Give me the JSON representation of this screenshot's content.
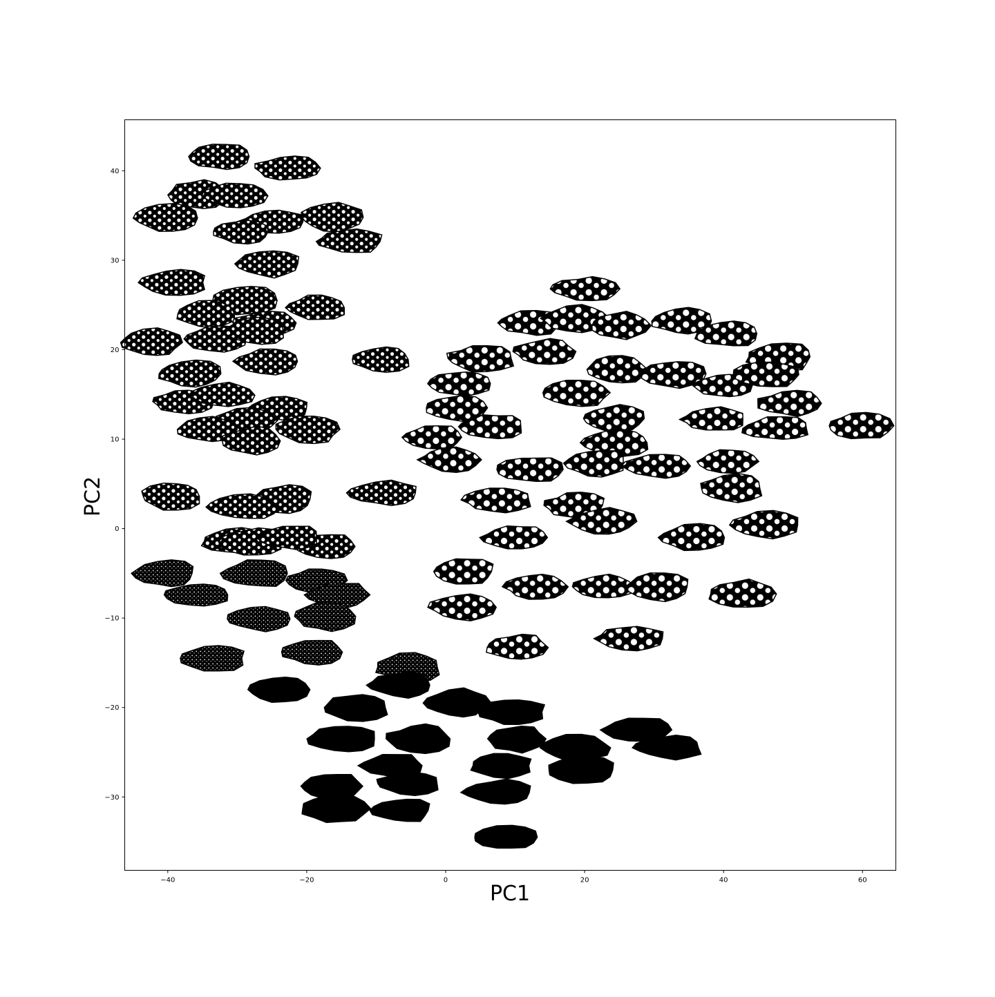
{
  "chart_data": {
    "type": "scatter",
    "title": "",
    "xlabel": "PC1",
    "ylabel": "PC2",
    "xlim": [
      -46.2,
      64.8
    ],
    "ylim": [
      -38.2,
      45.7
    ],
    "xticks": [
      -40,
      -20,
      0,
      20,
      40,
      60
    ],
    "yticks": [
      -30,
      -20,
      -10,
      0,
      10,
      20,
      30,
      40
    ],
    "xtick_labels": [
      "−40",
      "−20",
      "0",
      "20",
      "40",
      "60"
    ],
    "ytick_labels": [
      "−30",
      "−20",
      "−10",
      "0",
      "10",
      "20",
      "30",
      "40"
    ],
    "grid": false,
    "legend": "none",
    "marker": "image thumbnail of spotted specimen (black with white spots)",
    "points": [
      {
        "x": -32.5,
        "y": 41.6
      },
      {
        "x": -22.8,
        "y": 40.3
      },
      {
        "x": -35.8,
        "y": 37.3
      },
      {
        "x": -30.5,
        "y": 37.2
      },
      {
        "x": -40.2,
        "y": 34.7
      },
      {
        "x": -25.0,
        "y": 34.3
      },
      {
        "x": -16.5,
        "y": 34.8
      },
      {
        "x": -29.5,
        "y": 33.2
      },
      {
        "x": -13.9,
        "y": 32.1
      },
      {
        "x": -25.8,
        "y": 29.6
      },
      {
        "x": -39.2,
        "y": 27.5
      },
      {
        "x": -29.0,
        "y": 25.5
      },
      {
        "x": -18.8,
        "y": 24.7
      },
      {
        "x": -34.5,
        "y": 24.0
      },
      {
        "x": -26.0,
        "y": 23.0
      },
      {
        "x": -42.5,
        "y": 20.8
      },
      {
        "x": -33.0,
        "y": 21.2
      },
      {
        "x": -27.5,
        "y": 22.1
      },
      {
        "x": -25.6,
        "y": 18.7
      },
      {
        "x": -9.5,
        "y": 18.9
      },
      {
        "x": -37.0,
        "y": 17.3
      },
      {
        "x": -38.0,
        "y": 14.2
      },
      {
        "x": -32.3,
        "y": 14.9
      },
      {
        "x": -24.0,
        "y": 13.4
      },
      {
        "x": -29.0,
        "y": 12.1
      },
      {
        "x": -34.5,
        "y": 11.1
      },
      {
        "x": -20.0,
        "y": 11.1
      },
      {
        "x": -28.2,
        "y": 9.8
      },
      {
        "x": -39.6,
        "y": 3.6
      },
      {
        "x": -23.5,
        "y": 3.3
      },
      {
        "x": -29.3,
        "y": 2.4
      },
      {
        "x": -30.5,
        "y": -1.4
      },
      {
        "x": -28.0,
        "y": -1.5
      },
      {
        "x": -17.5,
        "y": -2.0
      },
      {
        "x": -22.5,
        "y": -1.0
      },
      {
        "x": -40.5,
        "y": -5.0
      },
      {
        "x": -27.5,
        "y": -5.0
      },
      {
        "x": -18.7,
        "y": -5.8
      },
      {
        "x": -35.8,
        "y": -7.4
      },
      {
        "x": -15.5,
        "y": -7.4
      },
      {
        "x": -27.0,
        "y": -10.1
      },
      {
        "x": -17.5,
        "y": -9.8
      },
      {
        "x": -19.3,
        "y": -13.8
      },
      {
        "x": -33.7,
        "y": -14.5
      },
      {
        "x": -5.5,
        "y": -15.5
      },
      {
        "x": -24.0,
        "y": -18.0
      },
      {
        "x": -6.5,
        "y": -17.5
      },
      {
        "x": -13.0,
        "y": -20.0
      },
      {
        "x": 1.5,
        "y": -19.5
      },
      {
        "x": 9.5,
        "y": -20.5
      },
      {
        "x": -15.0,
        "y": -23.5
      },
      {
        "x": -4.0,
        "y": -23.5
      },
      {
        "x": 10.0,
        "y": -23.5
      },
      {
        "x": 27.5,
        "y": -22.5
      },
      {
        "x": 32.0,
        "y": -24.5
      },
      {
        "x": 18.5,
        "y": -24.5
      },
      {
        "x": -8.0,
        "y": -26.5
      },
      {
        "x": 8.0,
        "y": -26.5
      },
      {
        "x": 19.5,
        "y": -27.0
      },
      {
        "x": -16.5,
        "y": -28.8
      },
      {
        "x": -5.5,
        "y": -28.5
      },
      {
        "x": 7.5,
        "y": -29.5
      },
      {
        "x": -16.0,
        "y": -31.3
      },
      {
        "x": -6.5,
        "y": -31.5
      },
      {
        "x": 8.5,
        "y": -34.5
      },
      {
        "x": 20.0,
        "y": 26.8
      },
      {
        "x": 12.0,
        "y": 23.0
      },
      {
        "x": 18.5,
        "y": 23.5
      },
      {
        "x": 25.0,
        "y": 22.7
      },
      {
        "x": 34.0,
        "y": 23.2
      },
      {
        "x": 40.5,
        "y": 21.8
      },
      {
        "x": 14.0,
        "y": 19.8
      },
      {
        "x": 5.0,
        "y": 19.0
      },
      {
        "x": 24.5,
        "y": 17.8
      },
      {
        "x": 32.5,
        "y": 17.3
      },
      {
        "x": 48.0,
        "y": 19.2
      },
      {
        "x": 40.0,
        "y": 16.0
      },
      {
        "x": 46.0,
        "y": 17.2
      },
      {
        "x": 2.0,
        "y": 16.2
      },
      {
        "x": 18.5,
        "y": 15.2
      },
      {
        "x": 1.5,
        "y": 13.5
      },
      {
        "x": 49.5,
        "y": 14.0
      },
      {
        "x": 24.0,
        "y": 12.3
      },
      {
        "x": 38.5,
        "y": 12.2
      },
      {
        "x": 6.5,
        "y": 11.4
      },
      {
        "x": -2.0,
        "y": 10.2
      },
      {
        "x": 47.5,
        "y": 11.2
      },
      {
        "x": 59.5,
        "y": 11.5
      },
      {
        "x": 24.5,
        "y": 9.6
      },
      {
        "x": 0.5,
        "y": 7.7
      },
      {
        "x": 12.0,
        "y": 6.6
      },
      {
        "x": 21.5,
        "y": 7.3
      },
      {
        "x": 30.5,
        "y": 7.0
      },
      {
        "x": 40.5,
        "y": 7.5
      },
      {
        "x": -9.0,
        "y": 4.0
      },
      {
        "x": 7.5,
        "y": 3.2
      },
      {
        "x": 18.5,
        "y": 2.6
      },
      {
        "x": 41.0,
        "y": 4.5
      },
      {
        "x": 22.5,
        "y": 0.8
      },
      {
        "x": 10.0,
        "y": -1.0
      },
      {
        "x": 46.0,
        "y": 0.4
      },
      {
        "x": 35.5,
        "y": -1.0
      },
      {
        "x": 2.5,
        "y": -4.8
      },
      {
        "x": 13.0,
        "y": -6.5
      },
      {
        "x": 22.5,
        "y": -6.5
      },
      {
        "x": 30.5,
        "y": -6.5
      },
      {
        "x": 42.5,
        "y": -7.3
      },
      {
        "x": 2.5,
        "y": -8.8
      },
      {
        "x": 10.0,
        "y": -13.3
      },
      {
        "x": 26.5,
        "y": -12.3
      }
    ]
  }
}
